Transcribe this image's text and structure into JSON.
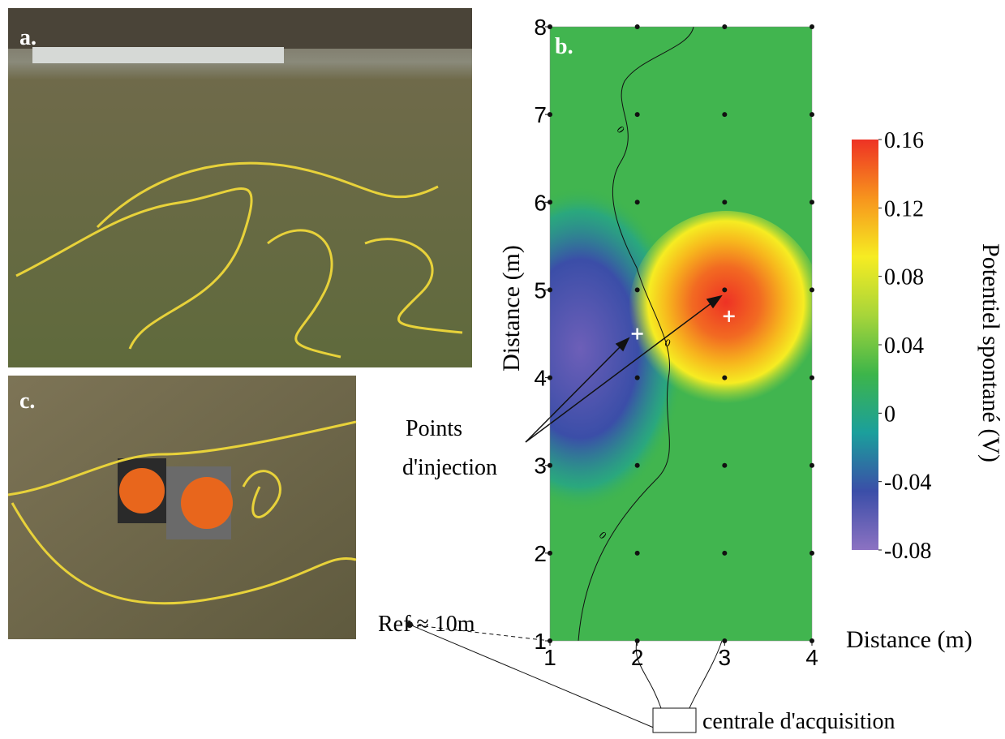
{
  "panels": {
    "a": "a.",
    "c": "c."
  },
  "chart_data": {
    "type": "heatmap",
    "panel_label": "b.",
    "x_label": "Distance (m)",
    "y_label": "Distance (m)",
    "xlim": [
      1,
      4
    ],
    "xticks": [
      1,
      2,
      3,
      4
    ],
    "ylim": [
      1,
      8
    ],
    "yticks": [
      1,
      2,
      3,
      4,
      5,
      6,
      7,
      8
    ],
    "colorbar_label": "Potentiel spontané (V)",
    "clim": [
      -0.08,
      0.16
    ],
    "colorbar_ticks": [
      0.16,
      0.12,
      0.08,
      0.04,
      0,
      -0.04,
      -0.08
    ],
    "colormap": [
      "#8c72c2",
      "#3b4ea8",
      "#1b9f9c",
      "#3db54a",
      "#a7d53a",
      "#f6ec22",
      "#f7941d",
      "#ee3224"
    ],
    "contour_labels": [
      "0",
      "0",
      "0",
      "0"
    ],
    "injection_points": [
      {
        "x": 2,
        "y": 4.5
      },
      {
        "x": 3.05,
        "y": 4.7
      }
    ],
    "annotations": {
      "injection": [
        "Points",
        "d'injection"
      ],
      "ref": "Ref ≈ 10m",
      "acquisition": "centrale d'acquisition"
    }
  }
}
